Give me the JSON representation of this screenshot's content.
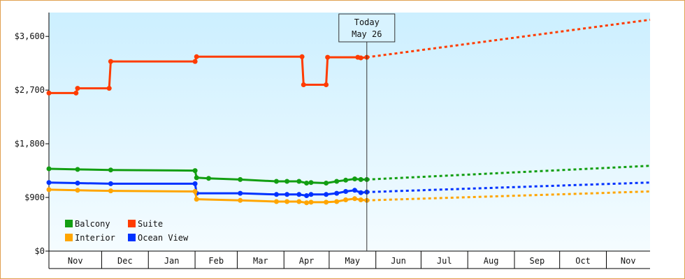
{
  "chart_data": {
    "type": "line",
    "title": "",
    "xlabel": "",
    "ylabel": "",
    "ylim": [
      0,
      3600
    ],
    "y_ticks": [
      {
        "value": 0,
        "label": "$0"
      },
      {
        "value": 900,
        "label": "$900"
      },
      {
        "value": 1800,
        "label": "$1,800"
      },
      {
        "value": 2700,
        "label": "$2,700"
      },
      {
        "value": 3600,
        "label": "$3,600"
      }
    ],
    "x_domain": [
      "2024-10-27",
      "2025-11-30"
    ],
    "months": [
      {
        "label": "Nov",
        "start": "2024-10-27",
        "end": "2024-12-01"
      },
      {
        "label": "Dec",
        "start": "2024-12-01",
        "end": "2025-01-01"
      },
      {
        "label": "Jan",
        "start": "2025-01-01",
        "end": "2025-02-01"
      },
      {
        "label": "Feb",
        "start": "2025-02-01",
        "end": "2025-03-01"
      },
      {
        "label": "Mar",
        "start": "2025-03-01",
        "end": "2025-04-01"
      },
      {
        "label": "Apr",
        "start": "2025-04-01",
        "end": "2025-05-01"
      },
      {
        "label": "May",
        "start": "2025-05-01",
        "end": "2025-06-01"
      },
      {
        "label": "Jun",
        "start": "2025-06-01",
        "end": "2025-07-01"
      },
      {
        "label": "Jul",
        "start": "2025-07-01",
        "end": "2025-08-01"
      },
      {
        "label": "Aug",
        "start": "2025-08-01",
        "end": "2025-09-01"
      },
      {
        "label": "Sep",
        "start": "2025-09-01",
        "end": "2025-10-01"
      },
      {
        "label": "Oct",
        "start": "2025-10-01",
        "end": "2025-11-01"
      },
      {
        "label": "Nov",
        "start": "2025-11-01",
        "end": "2025-11-30"
      }
    ],
    "today": {
      "line1": "Today",
      "line2": "May 26",
      "date": "2025-05-26"
    },
    "legend_position": "bottom-left",
    "background_gradient": [
      "#ccefff",
      "#f5fcff"
    ],
    "series": [
      {
        "name": "Suite",
        "color": "#ff3c00",
        "history": [
          [
            "2024-10-27",
            2650
          ],
          [
            "2024-11-14",
            2650
          ],
          [
            "2024-11-15",
            2730
          ],
          [
            "2024-12-06",
            2730
          ],
          [
            "2024-12-07",
            3180
          ],
          [
            "2025-02-01",
            3180
          ],
          [
            "2025-02-02",
            3260
          ],
          [
            "2025-04-13",
            3260
          ],
          [
            "2025-04-14",
            2790
          ],
          [
            "2025-04-29",
            2790
          ],
          [
            "2025-04-30",
            3250
          ],
          [
            "2025-05-20",
            3250
          ],
          [
            "2025-05-22",
            3240
          ],
          [
            "2025-05-26",
            3250
          ]
        ],
        "forecast": [
          [
            "2025-05-26",
            3250
          ],
          [
            "2025-11-30",
            3880
          ]
        ]
      },
      {
        "name": "Balcony",
        "color": "#129e12",
        "history": [
          [
            "2024-10-27",
            1380
          ],
          [
            "2024-11-15",
            1370
          ],
          [
            "2024-12-07",
            1360
          ],
          [
            "2025-02-01",
            1350
          ],
          [
            "2025-02-02",
            1230
          ],
          [
            "2025-02-10",
            1220
          ],
          [
            "2025-03-03",
            1200
          ],
          [
            "2025-03-27",
            1170
          ],
          [
            "2025-04-03",
            1170
          ],
          [
            "2025-04-11",
            1170
          ],
          [
            "2025-04-16",
            1140
          ],
          [
            "2025-04-19",
            1150
          ],
          [
            "2025-04-29",
            1140
          ],
          [
            "2025-05-06",
            1170
          ],
          [
            "2025-05-12",
            1190
          ],
          [
            "2025-05-18",
            1210
          ],
          [
            "2025-05-22",
            1200
          ],
          [
            "2025-05-26",
            1200
          ]
        ],
        "forecast": [
          [
            "2025-05-26",
            1200
          ],
          [
            "2025-11-30",
            1430
          ]
        ]
      },
      {
        "name": "Ocean View",
        "color": "#0032ff",
        "history": [
          [
            "2024-10-27",
            1150
          ],
          [
            "2024-11-15",
            1140
          ],
          [
            "2024-12-07",
            1130
          ],
          [
            "2025-02-01",
            1130
          ],
          [
            "2025-02-02",
            970
          ],
          [
            "2025-03-03",
            970
          ],
          [
            "2025-03-27",
            950
          ],
          [
            "2025-04-03",
            950
          ],
          [
            "2025-04-11",
            950
          ],
          [
            "2025-04-16",
            930
          ],
          [
            "2025-04-19",
            950
          ],
          [
            "2025-04-29",
            950
          ],
          [
            "2025-05-06",
            970
          ],
          [
            "2025-05-12",
            1000
          ],
          [
            "2025-05-18",
            1020
          ],
          [
            "2025-05-22",
            980
          ],
          [
            "2025-05-26",
            990
          ]
        ],
        "forecast": [
          [
            "2025-05-26",
            990
          ],
          [
            "2025-11-30",
            1150
          ]
        ]
      },
      {
        "name": "Interior",
        "color": "#ffa500",
        "history": [
          [
            "2024-10-27",
            1030
          ],
          [
            "2024-11-15",
            1020
          ],
          [
            "2024-12-07",
            1010
          ],
          [
            "2025-02-01",
            1000
          ],
          [
            "2025-02-02",
            870
          ],
          [
            "2025-03-03",
            850
          ],
          [
            "2025-03-27",
            830
          ],
          [
            "2025-04-03",
            830
          ],
          [
            "2025-04-11",
            830
          ],
          [
            "2025-04-16",
            810
          ],
          [
            "2025-04-19",
            820
          ],
          [
            "2025-04-29",
            820
          ],
          [
            "2025-05-06",
            830
          ],
          [
            "2025-05-12",
            860
          ],
          [
            "2025-05-18",
            880
          ],
          [
            "2025-05-22",
            860
          ],
          [
            "2025-05-26",
            850
          ]
        ],
        "forecast": [
          [
            "2025-05-26",
            850
          ],
          [
            "2025-11-30",
            1000
          ]
        ]
      }
    ],
    "legend": [
      {
        "name": "Balcony",
        "color": "#129e12"
      },
      {
        "name": "Suite",
        "color": "#ff3c00"
      },
      {
        "name": "Interior",
        "color": "#ffa500"
      },
      {
        "name": "Ocean View",
        "color": "#0032ff"
      }
    ]
  }
}
